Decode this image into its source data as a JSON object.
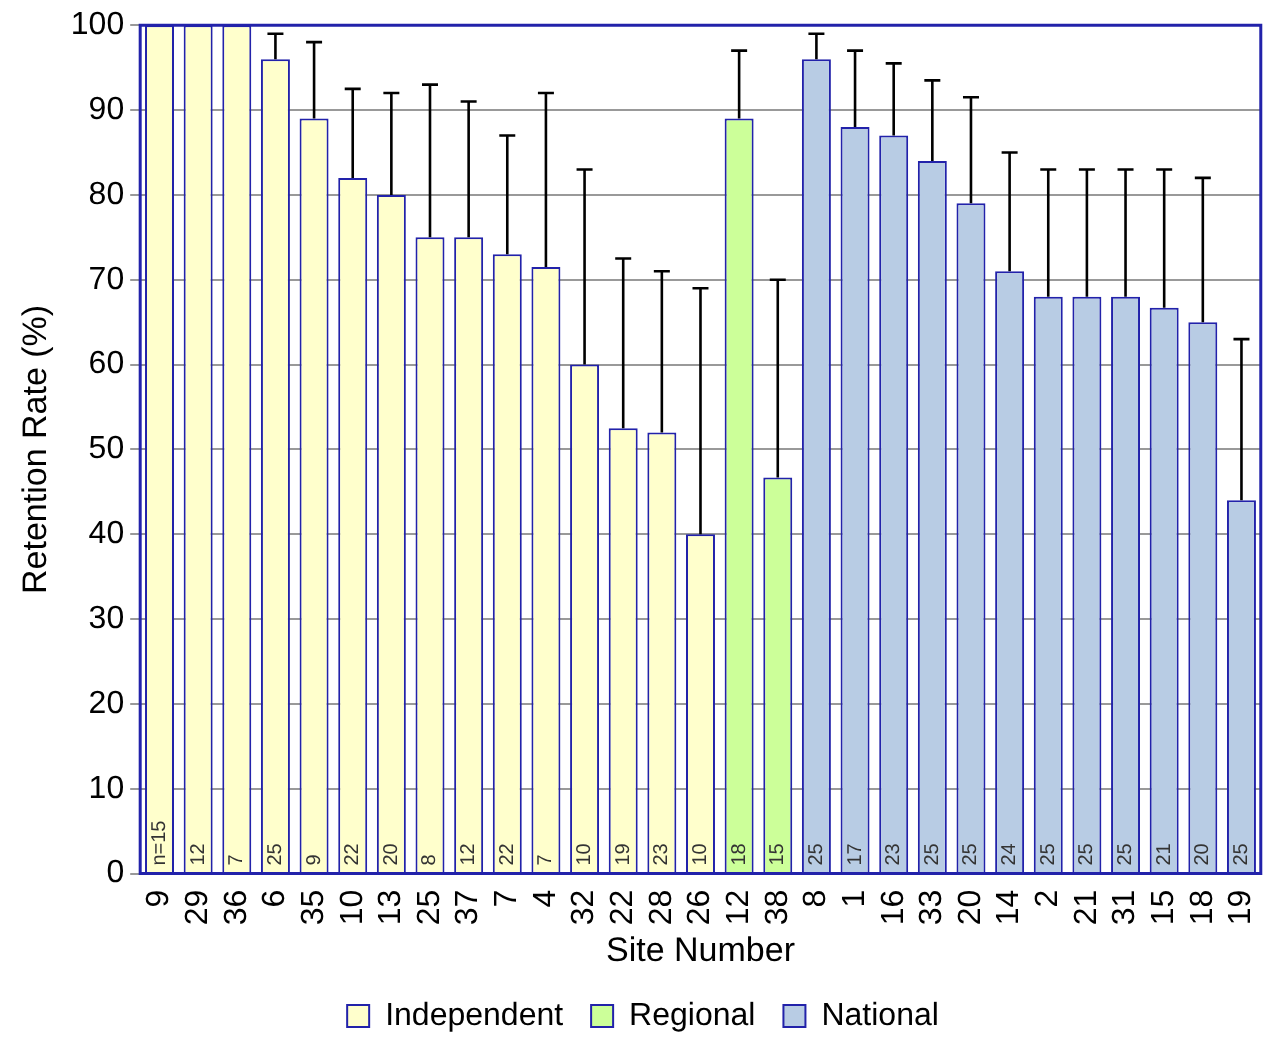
{
  "chart_data": {
    "type": "bar",
    "xlabel": "Site Number",
    "ylabel": "Retention Rate (%)",
    "categories": [
      "9",
      "29",
      "36",
      "6",
      "35",
      "10",
      "13",
      "25",
      "37",
      "7",
      "4",
      "32",
      "22",
      "28",
      "26",
      "12",
      "38",
      "8",
      "1",
      "16",
      "33",
      "20",
      "14",
      "2",
      "21",
      "31",
      "15",
      "18",
      "19"
    ],
    "series": [
      {
        "name": "Independent",
        "color": "#ffffcc",
        "values": [
          100,
          100,
          100,
          96,
          89,
          82,
          80,
          75,
          75,
          73,
          71.5,
          60,
          52.5,
          52,
          40,
          null,
          null,
          null,
          null,
          null,
          null,
          null,
          null,
          null,
          null,
          null,
          null,
          null,
          null
        ],
        "errors": [
          null,
          null,
          null,
          [
            96,
            99
          ],
          [
            89,
            98
          ],
          [
            82,
            92.5
          ],
          [
            80,
            92
          ],
          [
            75,
            93
          ],
          [
            75,
            91
          ],
          [
            73,
            87
          ],
          [
            71.5,
            92
          ],
          [
            60,
            83
          ],
          [
            52.5,
            72.5
          ],
          [
            52,
            71
          ],
          [
            40,
            69
          ],
          null,
          null,
          null,
          null,
          null,
          null,
          null,
          null,
          null,
          null,
          null,
          null,
          null,
          null
        ]
      },
      {
        "name": "Regional",
        "color": "#ccff99",
        "values": [
          null,
          null,
          null,
          null,
          null,
          null,
          null,
          null,
          null,
          null,
          null,
          null,
          null,
          null,
          null,
          89,
          46.7,
          null,
          null,
          null,
          null,
          null,
          null,
          null,
          null,
          null,
          null,
          null,
          null
        ],
        "errors": [
          null,
          null,
          null,
          null,
          null,
          null,
          null,
          null,
          null,
          null,
          null,
          null,
          null,
          null,
          null,
          [
            89,
            97
          ],
          [
            46.7,
            70
          ],
          null,
          null,
          null,
          null,
          null,
          null,
          null,
          null,
          null,
          null,
          null,
          null
        ]
      },
      {
        "name": "National",
        "color": "#b8cce4",
        "values": [
          null,
          null,
          null,
          null,
          null,
          null,
          null,
          null,
          null,
          null,
          null,
          null,
          null,
          null,
          null,
          null,
          null,
          96,
          88,
          87,
          84,
          79,
          71,
          68,
          68,
          68,
          66.7,
          65,
          44
        ],
        "errors": [
          null,
          null,
          null,
          null,
          null,
          null,
          null,
          null,
          null,
          null,
          null,
          null,
          null,
          null,
          null,
          null,
          null,
          [
            96,
            99
          ],
          [
            88,
            97
          ],
          [
            87,
            95.5
          ],
          [
            84,
            93.5
          ],
          [
            79,
            91.5
          ],
          [
            71,
            85
          ],
          [
            68,
            83
          ],
          [
            68,
            83
          ],
          [
            68,
            83
          ],
          [
            66.7,
            83
          ],
          [
            65,
            82
          ],
          [
            44,
            63
          ]
        ]
      }
    ],
    "ylim": [
      0,
      100
    ],
    "yticks": [
      0,
      10,
      20,
      30,
      40,
      50,
      60,
      70,
      80,
      90,
      100
    ],
    "grid": "y",
    "legend": "bottom",
    "annotations": [
      {
        "text": "n=15",
        "x": "9",
        "y": 0
      },
      {
        "text": "12",
        "x": "29",
        "y": 0
      },
      {
        "text": "7",
        "x": "36",
        "y": 0
      },
      {
        "text": "25",
        "x": "6",
        "y": 0
      },
      {
        "text": "9",
        "x": "35",
        "y": 0
      },
      {
        "text": "22",
        "x": "10",
        "y": 0
      },
      {
        "text": "20",
        "x": "13",
        "y": 0
      },
      {
        "text": "8",
        "x": "25",
        "y": 0
      },
      {
        "text": "12",
        "x": "37",
        "y": 0
      },
      {
        "text": "22",
        "x": "7",
        "y": 0
      },
      {
        "text": "7",
        "x": "4",
        "y": 0
      },
      {
        "text": "10",
        "x": "32",
        "y": 0
      },
      {
        "text": "19",
        "x": "22",
        "y": 0
      },
      {
        "text": "23",
        "x": "28",
        "y": 0
      },
      {
        "text": "10",
        "x": "26",
        "y": 0
      },
      {
        "text": "18",
        "x": "12",
        "y": 0
      },
      {
        "text": "15",
        "x": "38",
        "y": 0
      },
      {
        "text": "25",
        "x": "8",
        "y": 0
      },
      {
        "text": "17",
        "x": "1",
        "y": 0
      },
      {
        "text": "23",
        "x": "16",
        "y": 0
      },
      {
        "text": "25",
        "x": "33",
        "y": 0
      },
      {
        "text": "25",
        "x": "20",
        "y": 0
      },
      {
        "text": "24",
        "x": "14",
        "y": 0
      },
      {
        "text": "25",
        "x": "2",
        "y": 0
      },
      {
        "text": "25",
        "x": "21",
        "y": 0
      },
      {
        "text": "25",
        "x": "31",
        "y": 0
      },
      {
        "text": "21",
        "x": "15",
        "y": 0
      },
      {
        "text": "20",
        "x": "18",
        "y": 0
      },
      {
        "text": "25",
        "x": "19",
        "y": 0
      }
    ]
  }
}
